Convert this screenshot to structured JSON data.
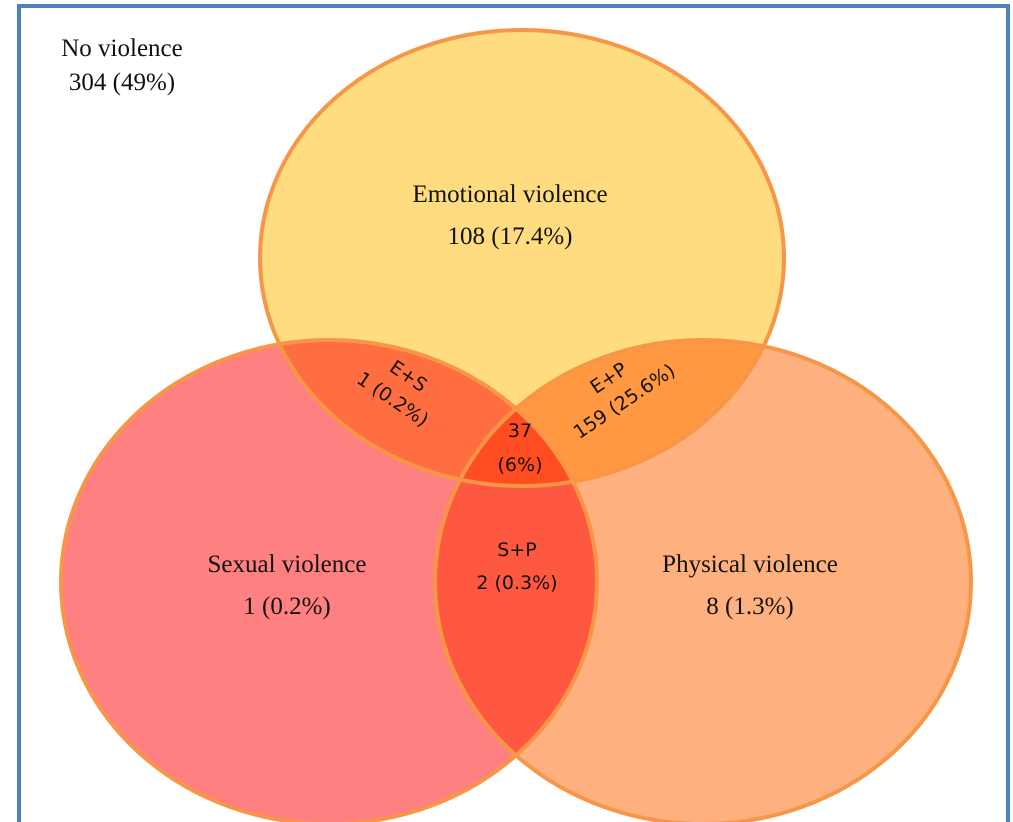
{
  "outside": {
    "name": "No violence",
    "count": "304 (49%)"
  },
  "sets": [
    {
      "name": "Emotional violence",
      "count": "108 (17.4%)"
    },
    {
      "name": "Sexual violence",
      "count": "1 (0.2%)"
    },
    {
      "name": "Physical violence",
      "count": "8 (1.3%)"
    }
  ],
  "overlaps": [
    {
      "name": "E+S",
      "count": "1 (0.2%)"
    },
    {
      "name": "E+P",
      "count": "159 (25.6%)"
    },
    {
      "name": "S+P",
      "count": "2 (0.3%)"
    },
    {
      "count": "37",
      "share": "(6%)"
    }
  ]
}
